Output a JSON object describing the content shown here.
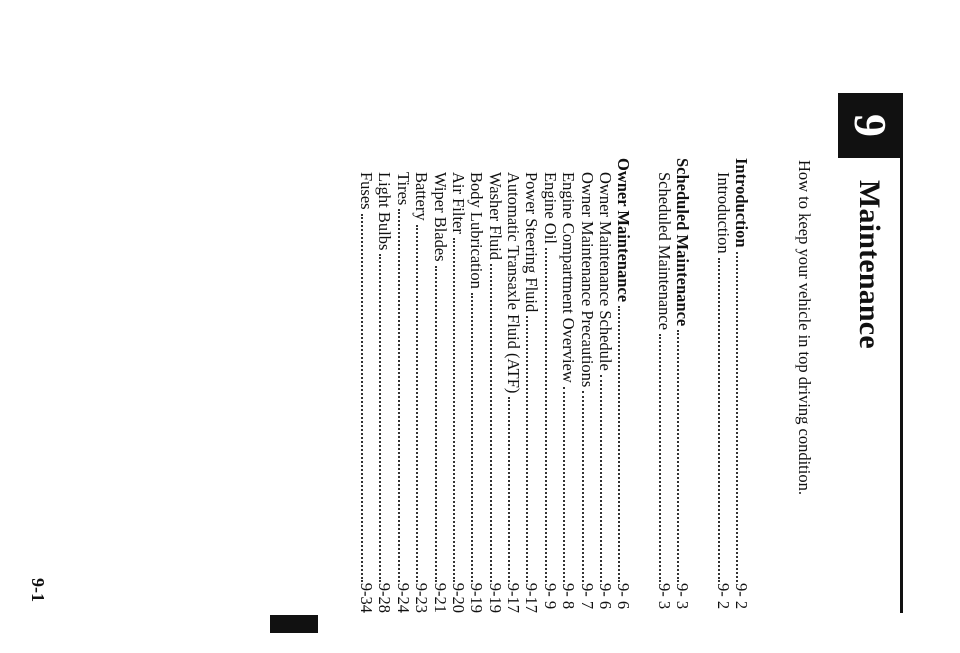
{
  "chapter": {
    "number": "9",
    "title": "Maintenance",
    "subtitle": "How to keep your vehicle in top driving condition."
  },
  "toc": [
    {
      "label": "Introduction",
      "page": "9- 2",
      "level": "head"
    },
    {
      "label": "Introduction",
      "page": "9- 2",
      "level": "sub"
    },
    {
      "label": "Scheduled Maintenance",
      "page": "9- 3",
      "level": "head",
      "gap": true
    },
    {
      "label": "Scheduled Maintenance",
      "page": "9- 3",
      "level": "sub"
    },
    {
      "label": "Owner Maintenance",
      "page": "9- 6",
      "level": "head",
      "gap": true
    },
    {
      "label": "Owner Maintenance Schedule",
      "page": "9- 6",
      "level": "sub"
    },
    {
      "label": "Owner Maintenance Precautions",
      "page": "9- 7",
      "level": "sub"
    },
    {
      "label": "Engine Compartment Overview",
      "page": "9- 8",
      "level": "sub"
    },
    {
      "label": "Engine Oil",
      "page": "9- 9",
      "level": "sub"
    },
    {
      "label": "Power Steering Fluid",
      "page": "9-17",
      "level": "sub"
    },
    {
      "label": "Automatic Transaxle Fluid (ATF)",
      "page": "9-17",
      "level": "sub"
    },
    {
      "label": "Washer Fluid",
      "page": "9-19",
      "level": "sub"
    },
    {
      "label": "Body Lubrication",
      "page": "9-19",
      "level": "sub"
    },
    {
      "label": "Air Filter",
      "page": "9-20",
      "level": "sub"
    },
    {
      "label": "Wiper Blades",
      "page": "9-21",
      "level": "sub"
    },
    {
      "label": "Battery",
      "page": "9-23",
      "level": "sub"
    },
    {
      "label": "Tires",
      "page": "9-24",
      "level": "sub"
    },
    {
      "label": "Light Bulbs",
      "page": "9-28",
      "level": "sub"
    },
    {
      "label": "Fuses",
      "page": "9-34",
      "level": "sub"
    }
  ],
  "footer": {
    "page_number": "9-1"
  }
}
